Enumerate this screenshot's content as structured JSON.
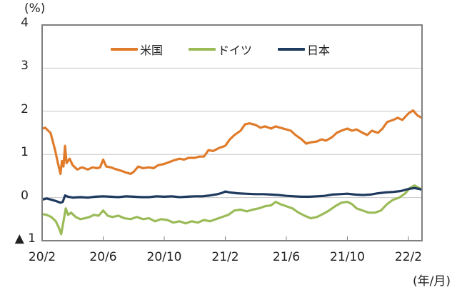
{
  "chart_data": {
    "type": "line",
    "title": "",
    "ylabel": "(%)",
    "xlabel": "(年/月)",
    "ylim": [
      -1,
      4
    ],
    "yticks": [
      4,
      3,
      2,
      1,
      0,
      -1
    ],
    "ytick_labels": [
      "4",
      "3",
      "2",
      "1",
      "0",
      "▲ 1"
    ],
    "xticks": [
      "20/2",
      "20/6",
      "20/10",
      "21/2",
      "21/6",
      "21/10",
      "22/2"
    ],
    "grid": "horizontal",
    "legend_position": "top-center",
    "x_unit": "months since 2020/2",
    "series": [
      {
        "name": "米国",
        "color": "#E07B2A",
        "points": [
          [
            0,
            1.6
          ],
          [
            0.2,
            1.62
          ],
          [
            0.4,
            1.55
          ],
          [
            0.55,
            1.5
          ],
          [
            0.7,
            1.3
          ],
          [
            0.85,
            1.1
          ],
          [
            1.0,
            0.85
          ],
          [
            1.1,
            0.7
          ],
          [
            1.2,
            0.55
          ],
          [
            1.3,
            0.85
          ],
          [
            1.4,
            0.72
          ],
          [
            1.5,
            1.2
          ],
          [
            1.6,
            0.8
          ],
          [
            1.8,
            0.9
          ],
          [
            2.0,
            0.75
          ],
          [
            2.3,
            0.65
          ],
          [
            2.6,
            0.7
          ],
          [
            3.0,
            0.65
          ],
          [
            3.3,
            0.7
          ],
          [
            3.6,
            0.68
          ],
          [
            3.8,
            0.7
          ],
          [
            4.0,
            0.88
          ],
          [
            4.2,
            0.72
          ],
          [
            4.5,
            0.7
          ],
          [
            4.8,
            0.66
          ],
          [
            5.2,
            0.62
          ],
          [
            5.5,
            0.58
          ],
          [
            5.8,
            0.55
          ],
          [
            6.0,
            0.6
          ],
          [
            6.3,
            0.72
          ],
          [
            6.6,
            0.68
          ],
          [
            7.0,
            0.7
          ],
          [
            7.3,
            0.68
          ],
          [
            7.6,
            0.75
          ],
          [
            8.0,
            0.78
          ],
          [
            8.3,
            0.82
          ],
          [
            8.6,
            0.86
          ],
          [
            9.0,
            0.9
          ],
          [
            9.3,
            0.88
          ],
          [
            9.6,
            0.92
          ],
          [
            10.0,
            0.92
          ],
          [
            10.3,
            0.95
          ],
          [
            10.6,
            0.95
          ],
          [
            10.9,
            1.1
          ],
          [
            11.2,
            1.08
          ],
          [
            11.6,
            1.15
          ],
          [
            12.0,
            1.2
          ],
          [
            12.3,
            1.35
          ],
          [
            12.6,
            1.45
          ],
          [
            13.0,
            1.55
          ],
          [
            13.3,
            1.7
          ],
          [
            13.6,
            1.72
          ],
          [
            14.0,
            1.68
          ],
          [
            14.3,
            1.62
          ],
          [
            14.6,
            1.65
          ],
          [
            15.0,
            1.6
          ],
          [
            15.3,
            1.65
          ],
          [
            15.6,
            1.62
          ],
          [
            16.0,
            1.58
          ],
          [
            16.3,
            1.55
          ],
          [
            16.6,
            1.45
          ],
          [
            17.0,
            1.35
          ],
          [
            17.3,
            1.25
          ],
          [
            17.6,
            1.28
          ],
          [
            18.0,
            1.3
          ],
          [
            18.3,
            1.35
          ],
          [
            18.6,
            1.32
          ],
          [
            19.0,
            1.4
          ],
          [
            19.3,
            1.5
          ],
          [
            19.6,
            1.55
          ],
          [
            20.0,
            1.6
          ],
          [
            20.3,
            1.55
          ],
          [
            20.6,
            1.58
          ],
          [
            21.0,
            1.5
          ],
          [
            21.3,
            1.45
          ],
          [
            21.6,
            1.55
          ],
          [
            22.0,
            1.5
          ],
          [
            22.3,
            1.6
          ],
          [
            22.6,
            1.75
          ],
          [
            23.0,
            1.8
          ],
          [
            23.3,
            1.85
          ],
          [
            23.6,
            1.8
          ],
          [
            24.0,
            1.95
          ],
          [
            24.3,
            2.02
          ],
          [
            24.6,
            1.9
          ],
          [
            24.9,
            1.85
          ]
        ]
      },
      {
        "name": "ドイツ",
        "color": "#9BBB59",
        "points": [
          [
            0,
            -0.38
          ],
          [
            0.3,
            -0.4
          ],
          [
            0.6,
            -0.45
          ],
          [
            0.9,
            -0.55
          ],
          [
            1.1,
            -0.7
          ],
          [
            1.25,
            -0.85
          ],
          [
            1.4,
            -0.55
          ],
          [
            1.55,
            -0.25
          ],
          [
            1.7,
            -0.4
          ],
          [
            1.9,
            -0.35
          ],
          [
            2.2,
            -0.45
          ],
          [
            2.5,
            -0.5
          ],
          [
            2.8,
            -0.48
          ],
          [
            3.1,
            -0.45
          ],
          [
            3.4,
            -0.4
          ],
          [
            3.7,
            -0.42
          ],
          [
            4.0,
            -0.3
          ],
          [
            4.3,
            -0.42
          ],
          [
            4.6,
            -0.45
          ],
          [
            5.0,
            -0.42
          ],
          [
            5.4,
            -0.48
          ],
          [
            5.8,
            -0.5
          ],
          [
            6.2,
            -0.45
          ],
          [
            6.6,
            -0.5
          ],
          [
            7.0,
            -0.48
          ],
          [
            7.4,
            -0.55
          ],
          [
            7.8,
            -0.5
          ],
          [
            8.2,
            -0.52
          ],
          [
            8.6,
            -0.58
          ],
          [
            9.0,
            -0.55
          ],
          [
            9.4,
            -0.6
          ],
          [
            9.8,
            -0.55
          ],
          [
            10.2,
            -0.58
          ],
          [
            10.6,
            -0.52
          ],
          [
            11.0,
            -0.55
          ],
          [
            11.4,
            -0.5
          ],
          [
            11.8,
            -0.45
          ],
          [
            12.2,
            -0.4
          ],
          [
            12.6,
            -0.3
          ],
          [
            13.0,
            -0.28
          ],
          [
            13.4,
            -0.32
          ],
          [
            13.8,
            -0.28
          ],
          [
            14.2,
            -0.25
          ],
          [
            14.6,
            -0.2
          ],
          [
            15.0,
            -0.18
          ],
          [
            15.3,
            -0.1
          ],
          [
            15.6,
            -0.15
          ],
          [
            16.0,
            -0.2
          ],
          [
            16.4,
            -0.25
          ],
          [
            16.8,
            -0.35
          ],
          [
            17.2,
            -0.42
          ],
          [
            17.6,
            -0.48
          ],
          [
            18.0,
            -0.45
          ],
          [
            18.4,
            -0.38
          ],
          [
            18.8,
            -0.3
          ],
          [
            19.2,
            -0.2
          ],
          [
            19.6,
            -0.12
          ],
          [
            20.0,
            -0.1
          ],
          [
            20.3,
            -0.15
          ],
          [
            20.6,
            -0.25
          ],
          [
            21.0,
            -0.3
          ],
          [
            21.4,
            -0.35
          ],
          [
            21.8,
            -0.35
          ],
          [
            22.2,
            -0.3
          ],
          [
            22.6,
            -0.15
          ],
          [
            23.0,
            -0.05
          ],
          [
            23.4,
            0.0
          ],
          [
            23.8,
            0.1
          ],
          [
            24.1,
            0.22
          ],
          [
            24.4,
            0.28
          ],
          [
            24.7,
            0.22
          ],
          [
            24.9,
            0.18
          ]
        ]
      },
      {
        "name": "日本",
        "color": "#1F3A5F",
        "points": [
          [
            0,
            -0.05
          ],
          [
            0.3,
            -0.02
          ],
          [
            0.6,
            -0.05
          ],
          [
            0.9,
            -0.08
          ],
          [
            1.2,
            -0.12
          ],
          [
            1.35,
            -0.1
          ],
          [
            1.5,
            0.05
          ],
          [
            1.7,
            0.02
          ],
          [
            2.0,
            0.0
          ],
          [
            2.5,
            0.01
          ],
          [
            3.0,
            0.0
          ],
          [
            3.5,
            0.02
          ],
          [
            4.0,
            0.03
          ],
          [
            4.5,
            0.02
          ],
          [
            5.0,
            0.01
          ],
          [
            5.5,
            0.03
          ],
          [
            6.0,
            0.02
          ],
          [
            6.5,
            0.01
          ],
          [
            7.0,
            0.01
          ],
          [
            7.5,
            0.03
          ],
          [
            8.0,
            0.02
          ],
          [
            8.5,
            0.03
          ],
          [
            9.0,
            0.01
          ],
          [
            9.5,
            0.02
          ],
          [
            10.0,
            0.03
          ],
          [
            10.5,
            0.03
          ],
          [
            11.0,
            0.05
          ],
          [
            11.5,
            0.08
          ],
          [
            11.8,
            0.11
          ],
          [
            12.0,
            0.14
          ],
          [
            12.3,
            0.12
          ],
          [
            12.8,
            0.1
          ],
          [
            13.3,
            0.09
          ],
          [
            14.0,
            0.08
          ],
          [
            14.5,
            0.08
          ],
          [
            15.0,
            0.07
          ],
          [
            15.5,
            0.06
          ],
          [
            16.0,
            0.04
          ],
          [
            16.5,
            0.03
          ],
          [
            17.0,
            0.02
          ],
          [
            17.5,
            0.02
          ],
          [
            18.0,
            0.03
          ],
          [
            18.5,
            0.04
          ],
          [
            19.0,
            0.07
          ],
          [
            19.5,
            0.08
          ],
          [
            20.0,
            0.09
          ],
          [
            20.5,
            0.07
          ],
          [
            21.0,
            0.06
          ],
          [
            21.5,
            0.07
          ],
          [
            22.0,
            0.1
          ],
          [
            22.5,
            0.12
          ],
          [
            23.0,
            0.13
          ],
          [
            23.5,
            0.15
          ],
          [
            24.0,
            0.2
          ],
          [
            24.4,
            0.22
          ],
          [
            24.7,
            0.2
          ],
          [
            24.9,
            0.18
          ]
        ]
      }
    ]
  },
  "axes": {
    "y_unit_label": "(%)",
    "x_unit_label": "(年/月)"
  },
  "legend": {
    "items": [
      {
        "label": "米国",
        "color": "#E07B2A"
      },
      {
        "label": "ドイツ",
        "color": "#9BBB59"
      },
      {
        "label": "日本",
        "color": "#1F3A5F"
      }
    ]
  }
}
